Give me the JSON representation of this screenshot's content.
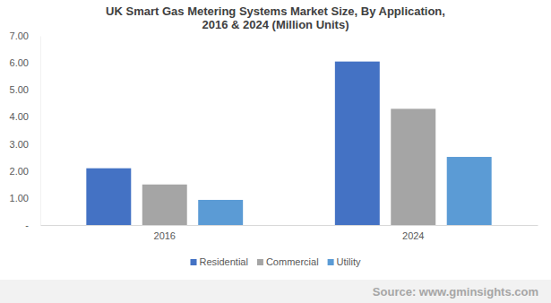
{
  "chart_data": {
    "type": "bar",
    "title": [
      "UK Smart Gas Metering Systems Market Size, By Application,",
      "2016 & 2024 (Million Units)"
    ],
    "categories": [
      "2016",
      "2024"
    ],
    "series": [
      {
        "name": "Residential",
        "color": "#4472c4",
        "values": [
          2.1,
          6.05
        ]
      },
      {
        "name": "Commercial",
        "color": "#a5a5a5",
        "values": [
          1.5,
          4.3
        ]
      },
      {
        "name": "Utility",
        "color": "#5b9bd5",
        "values": [
          0.93,
          2.52
        ]
      }
    ],
    "ylim": [
      0,
      7
    ],
    "yticks": [
      {
        "value": 0,
        "label": "-"
      },
      {
        "value": 1,
        "label": "1.00"
      },
      {
        "value": 2,
        "label": "2.00"
      },
      {
        "value": 3,
        "label": "3.00"
      },
      {
        "value": 4,
        "label": "4.00"
      },
      {
        "value": 5,
        "label": "5.00"
      },
      {
        "value": 6,
        "label": "6.00"
      },
      {
        "value": 7,
        "label": "7.00"
      }
    ],
    "grid": false,
    "legend": "bottom",
    "source": "Source: www.gminsights.com"
  }
}
